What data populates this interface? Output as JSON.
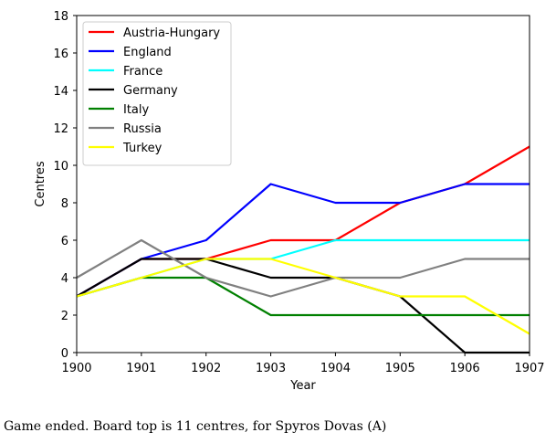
{
  "chart_data": {
    "type": "line",
    "x": [
      1900,
      1901,
      1902,
      1903,
      1904,
      1905,
      1906,
      1907
    ],
    "xticks": [
      "1900",
      "1901",
      "1902",
      "1903",
      "1904",
      "1905",
      "1906",
      "1907"
    ],
    "yticks": [
      "0",
      "2",
      "4",
      "6",
      "8",
      "10",
      "12",
      "14",
      "16",
      "18"
    ],
    "xlim": [
      1900,
      1907
    ],
    "ylim": [
      0,
      18
    ],
    "xlabel": "Year",
    "ylabel": "Centres",
    "grid": false,
    "legend": "top-left",
    "series": [
      {
        "name": "Austria-Hungary",
        "color": "#ff0000",
        "values": [
          3,
          5,
          5,
          6,
          6,
          8,
          9,
          11
        ]
      },
      {
        "name": "England",
        "color": "#0000ff",
        "values": [
          3,
          5,
          6,
          9,
          8,
          8,
          9,
          9
        ]
      },
      {
        "name": "France",
        "color": "#00ffff",
        "values": [
          3,
          4,
          5,
          5,
          6,
          6,
          6,
          6
        ]
      },
      {
        "name": "Germany",
        "color": "#000000",
        "values": [
          3,
          5,
          5,
          4,
          4,
          3,
          0,
          0
        ]
      },
      {
        "name": "Italy",
        "color": "#008000",
        "values": [
          3,
          4,
          4,
          2,
          2,
          2,
          2,
          2
        ]
      },
      {
        "name": "Russia",
        "color": "#808080",
        "values": [
          4,
          6,
          4,
          3,
          4,
          4,
          5,
          5
        ]
      },
      {
        "name": "Turkey",
        "color": "#ffff00",
        "values": [
          3,
          4,
          5,
          5,
          4,
          3,
          3,
          1
        ]
      }
    ]
  },
  "caption": "Game ended. Board top is 11 centres, for Spyros Dovas (A)"
}
